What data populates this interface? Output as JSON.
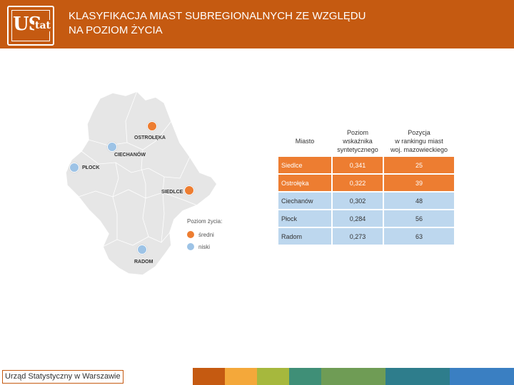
{
  "header": {
    "logo_text": "UStat",
    "title_line1": "KLASYFIKACJA MIAST SUBREGIONALNYCH ZE WZGLĘDU",
    "title_line2": "NA POZIOM ŻYCIA"
  },
  "map": {
    "cities": [
      {
        "label": "OSTROŁĘKA",
        "level": "średni"
      },
      {
        "label": "CIECHANÓW",
        "level": "niski"
      },
      {
        "label": "PŁOCK",
        "level": "niski"
      },
      {
        "label": "SIEDLCE",
        "level": "średni"
      },
      {
        "label": "RADOM",
        "level": "niski"
      }
    ],
    "legend": {
      "title": "Poziom życia:",
      "items": [
        {
          "label": "średni",
          "color": "#ed7d31"
        },
        {
          "label": "niski",
          "color": "#9dc3e6"
        }
      ]
    }
  },
  "table": {
    "headers": {
      "city": "Miasto",
      "level_line1": "Poziom",
      "level_line2": "wskaźnika",
      "level_line3": "syntetycznego",
      "rank_line1": "Pozycja",
      "rank_line2": "w rankingu miast",
      "rank_line3": "woj. mazowieckiego"
    },
    "rows": [
      {
        "city": "Siedlce",
        "value": "0,341",
        "rank": "25"
      },
      {
        "city": "Ostrołęka",
        "value": "0,322",
        "rank": "39"
      },
      {
        "city": "Ciechanów",
        "value": "0,302",
        "rank": "48"
      },
      {
        "city": "Płock",
        "value": "0,284",
        "rank": "56"
      },
      {
        "city": "Radom",
        "value": "0,273",
        "rank": "63"
      }
    ]
  },
  "footer": {
    "label": "Urząd Statystyczny w Warszawie",
    "stripe_colors": [
      "#c55a11",
      "#f4a83a",
      "#a6b83d",
      "#3f8f77",
      "#6f9c55",
      "#2e7d8c",
      "#4a6fa5",
      "#3a7fc2"
    ]
  },
  "colors": {
    "header": "#c55a11",
    "medium": "#ed7d31",
    "low": "#9dc3e6"
  }
}
